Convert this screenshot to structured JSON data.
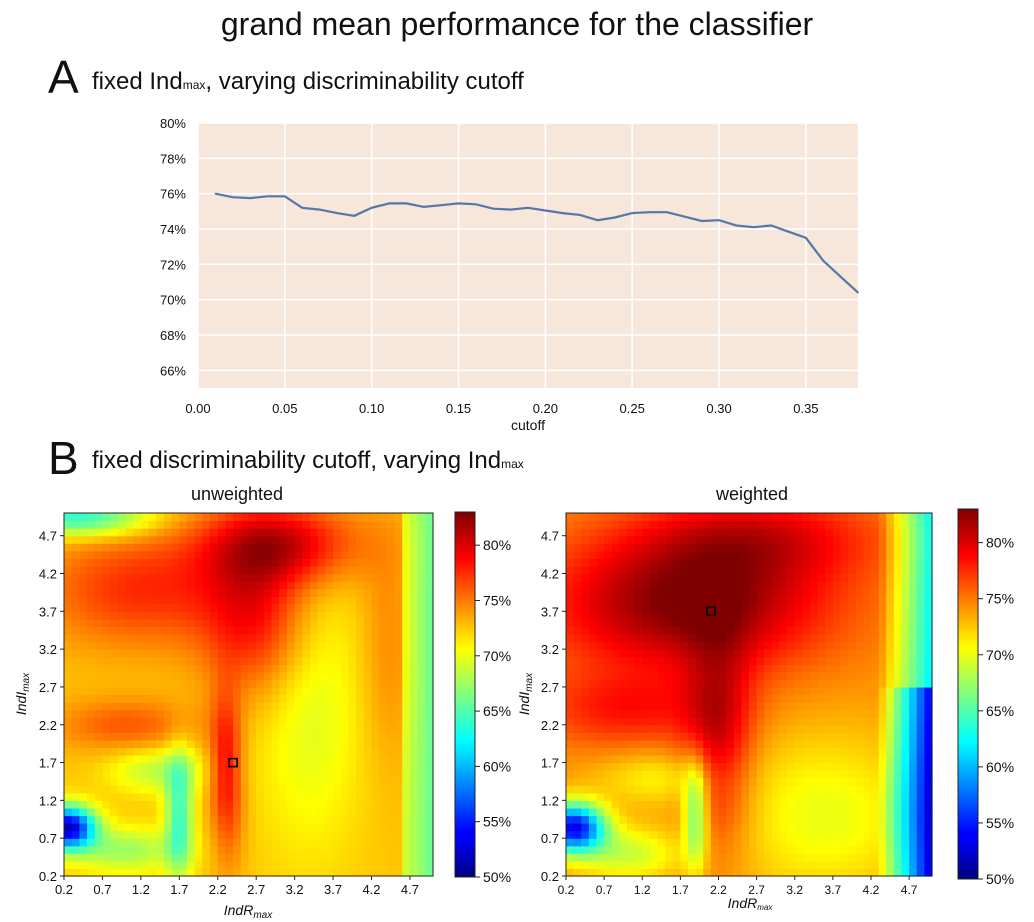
{
  "figure": {
    "title": "grand mean performance for the classifier",
    "panel_a": {
      "letter": "A",
      "title_pre": "fixed Ind",
      "title_sub": "max",
      "title_post": ", varying discriminability cutoff"
    },
    "panel_b": {
      "letter": "B",
      "title_pre": "fixed discriminability cutoff, varying Ind",
      "title_sub": "max"
    }
  },
  "chart_data": [
    {
      "type": "line",
      "panel": "A",
      "xlabel": "cutoff",
      "ylabel": "",
      "xlim": [
        0.0,
        0.38
      ],
      "ylim": [
        65,
        80
      ],
      "x_ticks": [
        0.0,
        0.05,
        0.1,
        0.15,
        0.2,
        0.25,
        0.3,
        0.35
      ],
      "x_tick_labels": [
        "0.00",
        "0.05",
        "0.10",
        "0.15",
        "0.20",
        "0.25",
        "0.30",
        "0.35"
      ],
      "y_ticks": [
        66,
        68,
        70,
        72,
        74,
        76,
        78,
        80
      ],
      "y_tick_labels": [
        "66%",
        "68%",
        "70%",
        "72%",
        "74%",
        "76%",
        "78%",
        "80%"
      ],
      "grid": true,
      "background": "#f7e6da",
      "line_color": "#5577aa",
      "x": [
        0.01,
        0.02,
        0.03,
        0.04,
        0.05,
        0.06,
        0.07,
        0.08,
        0.09,
        0.1,
        0.11,
        0.12,
        0.13,
        0.14,
        0.15,
        0.16,
        0.17,
        0.18,
        0.19,
        0.2,
        0.21,
        0.22,
        0.23,
        0.24,
        0.25,
        0.26,
        0.27,
        0.28,
        0.29,
        0.3,
        0.31,
        0.32,
        0.33,
        0.34,
        0.35,
        0.36,
        0.37,
        0.38
      ],
      "y": [
        76.0,
        75.8,
        75.75,
        75.85,
        75.85,
        75.2,
        75.1,
        74.9,
        74.75,
        75.2,
        75.45,
        75.45,
        75.25,
        75.35,
        75.45,
        75.4,
        75.15,
        75.1,
        75.2,
        75.05,
        74.9,
        74.8,
        74.5,
        74.65,
        74.9,
        74.95,
        74.95,
        74.7,
        74.45,
        74.5,
        74.2,
        74.1,
        74.2,
        73.85,
        73.5,
        72.2,
        71.3,
        70.4
      ]
    },
    {
      "type": "heatmap",
      "panel": "B",
      "title": "unweighted",
      "xlabel": "IndR",
      "xlabel_sub": "max",
      "ylabel": "IndI",
      "ylabel_sub": "max",
      "xlim": [
        0.2,
        5.0
      ],
      "ylim": [
        0.2,
        5.0
      ],
      "x_tick_labels": [
        "0.2",
        "0.7",
        "1.2",
        "1.7",
        "2.2",
        "2.7",
        "3.2",
        "3.7",
        "4.2",
        "4.7"
      ],
      "y_tick_labels": [
        "0.2",
        "0.7",
        "1.2",
        "1.7",
        "2.2",
        "2.7",
        "3.2",
        "3.7",
        "4.2",
        "4.7"
      ],
      "grid_size": 48,
      "marker": [
        2.4,
        1.7
      ],
      "colorbar": {
        "min": 50,
        "max": 83,
        "ticks": [
          50,
          55,
          60,
          65,
          70,
          75,
          80
        ],
        "tick_labels": [
          "50%",
          "55%",
          "60%",
          "65%",
          "70%",
          "75%",
          "80%"
        ]
      }
    },
    {
      "type": "heatmap",
      "panel": "B",
      "title": "weighted",
      "xlabel": "IndR",
      "xlabel_sub": "max",
      "ylabel": "IndI",
      "ylabel_sub": "max",
      "xlim": [
        0.2,
        5.0
      ],
      "ylim": [
        0.2,
        5.0
      ],
      "x_tick_labels": [
        "0.2",
        "0.7",
        "1.2",
        "1.7",
        "2.2",
        "2.7",
        "3.2",
        "3.7",
        "4.2",
        "4.7"
      ],
      "y_tick_labels": [
        "0.2",
        "0.7",
        "1.2",
        "1.7",
        "2.2",
        "2.7",
        "3.2",
        "3.7",
        "4.2",
        "4.7"
      ],
      "grid_size": 48,
      "marker": [
        2.1,
        3.7
      ],
      "colorbar": {
        "min": 50,
        "max": 83,
        "ticks": [
          50,
          55,
          60,
          65,
          70,
          75,
          80
        ],
        "tick_labels": [
          "50%",
          "55%",
          "60%",
          "65%",
          "70%",
          "75%",
          "80%"
        ]
      }
    }
  ]
}
